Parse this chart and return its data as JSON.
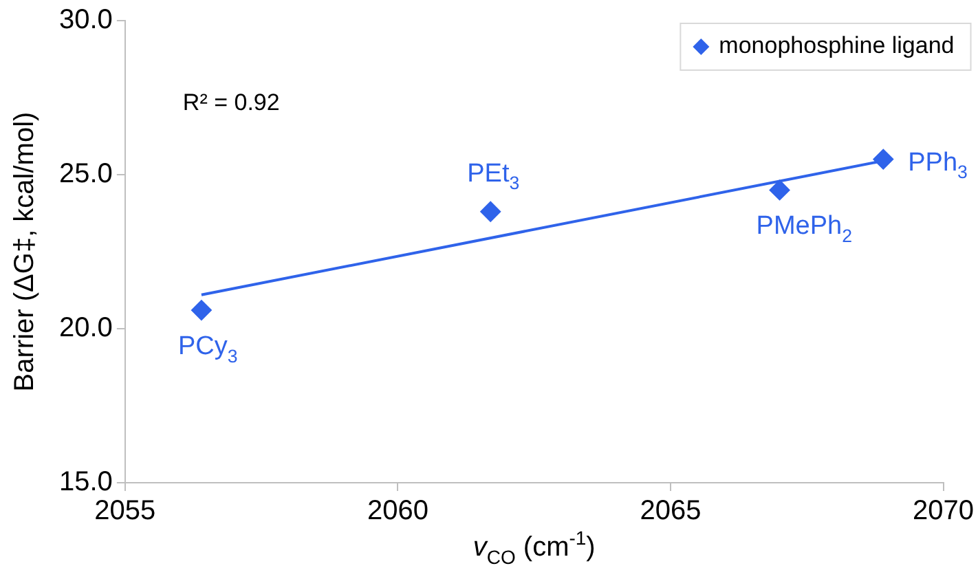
{
  "chart_data": {
    "type": "scatter",
    "xlabel": "v$_{CO}$ (cm$^{-1}$)",
    "ylabel": "Barrier (ΔG‡, kcal/mol)",
    "xlim": [
      2055,
      2070
    ],
    "xticks": [
      2055,
      2060,
      2065,
      2070
    ],
    "ylim": [
      15,
      30
    ],
    "yticks": [
      {
        "value": 15,
        "label": "15.0"
      },
      {
        "value": 20,
        "label": "20.0"
      },
      {
        "value": 25,
        "label": "25.0"
      },
      {
        "value": 30,
        "label": "30.0"
      }
    ],
    "grid": false,
    "legend": "top right",
    "marker": "diamond",
    "series": [
      {
        "name": "monophosphine ligand",
        "color": "#2f63ea",
        "x": [
          2056.4,
          2061.7,
          2067.0,
          2068.9
        ],
        "values": [
          20.6,
          23.8,
          24.5,
          25.5
        ]
      },
      {
        "type": "line",
        "color": "#2f63ea",
        "marker": "none",
        "x": [
          2056.4,
          2068.9
        ],
        "values": [
          21.1,
          25.45
        ]
      }
    ],
    "annotations": [
      "R² = 0.92",
      {
        "text": "PCy$_{3}$",
        "x": 2056.4,
        "y": 20.6
      },
      {
        "text": "PEt$_{3}$",
        "x": 2061.7,
        "y": 23.8
      },
      {
        "text": "PMePh$_{2}$",
        "x": 2067.0,
        "y": 24.5
      },
      {
        "text": "PPh$_{3}$",
        "x": 2068.9,
        "y": 25.5
      }
    ]
  }
}
